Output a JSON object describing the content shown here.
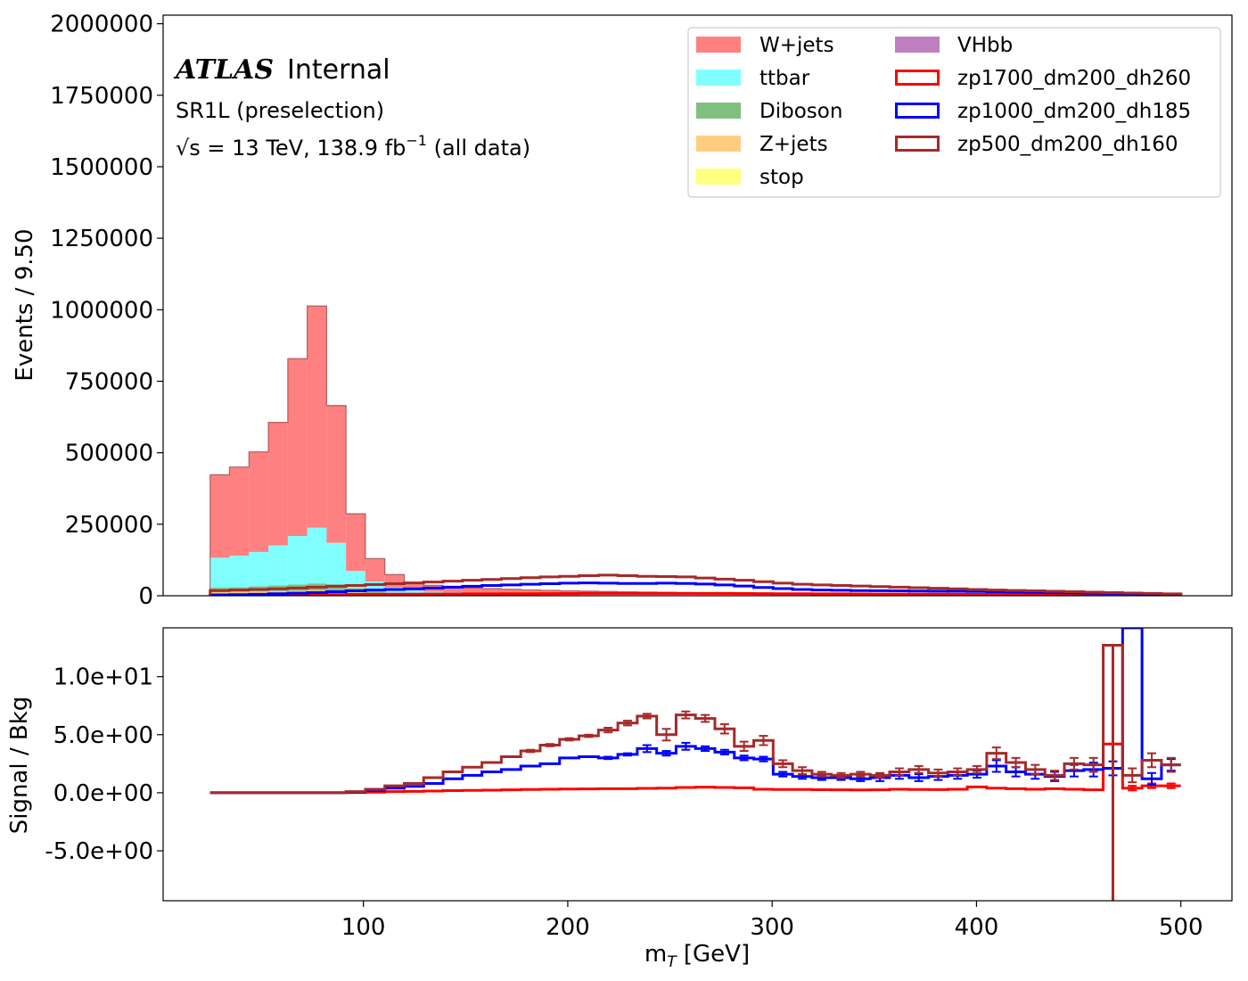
{
  "chart_data": [
    {
      "type": "bar",
      "subtype": "stacked-histogram",
      "xlabel": "m_T [GeV]",
      "ylabel": "Events / 9.50",
      "xlim": [
        2,
        525
      ],
      "ylim": [
        0,
        2030000
      ],
      "yticks": [
        0,
        250000,
        500000,
        750000,
        1000000,
        1250000,
        1500000,
        1750000,
        2000000
      ],
      "ytick_labels": [
        "0",
        "250000",
        "500000",
        "750000",
        "1000000",
        "1250000",
        "1500000",
        "1750000",
        "2000000"
      ],
      "bin_edges": [
        25.0,
        34.5,
        44.0,
        53.5,
        63.0,
        72.5,
        82.0,
        91.5,
        101.0,
        110.5,
        120.0,
        129.5,
        139.0,
        148.5,
        158.0,
        167.5,
        177.0,
        186.5,
        196.0,
        205.5,
        215.0,
        224.5,
        234.0,
        243.5,
        253.0,
        262.5,
        272.0,
        281.5,
        291.0,
        300.5,
        310.0,
        319.5,
        329.0,
        338.5,
        348.0,
        357.5,
        367.0,
        376.5,
        386.0,
        395.5,
        405.0,
        414.5,
        424.0,
        433.5,
        443.0,
        452.5,
        462.0,
        471.5,
        481.0,
        490.5,
        500.0
      ],
      "stack": [
        {
          "name": "VHbb",
          "color": "#bf7fbf",
          "values": [
            0,
            0,
            0,
            0,
            0,
            0,
            0,
            0,
            0,
            0,
            0,
            0,
            0,
            0,
            0,
            0,
            0,
            0,
            0,
            0,
            0,
            0,
            0,
            0,
            0,
            0,
            0,
            0,
            0,
            0,
            0,
            0,
            0,
            0,
            0,
            0,
            0,
            0,
            0,
            0,
            0,
            0,
            0,
            0,
            0,
            0,
            0,
            0,
            0,
            0
          ]
        },
        {
          "name": "stop",
          "color": "#ffff80",
          "values": [
            3000,
            3000,
            3000,
            3000,
            3000,
            3000,
            3000,
            2500,
            2000,
            1500,
            1000,
            800,
            600,
            500,
            400,
            400,
            300,
            300,
            300,
            300,
            200,
            200,
            200,
            200,
            200,
            200,
            200,
            100,
            100,
            100,
            100,
            100,
            100,
            100,
            100,
            100,
            100,
            100,
            100,
            100,
            100,
            100,
            100,
            100,
            100,
            100,
            100,
            100,
            100,
            100
          ]
        },
        {
          "name": "Z+jets",
          "color": "#ffcc80",
          "values": [
            10000,
            11000,
            12000,
            13000,
            14000,
            15000,
            14000,
            9000,
            5000,
            3000,
            2000,
            1500,
            1200,
            1000,
            900,
            800,
            700,
            600,
            600,
            500,
            500,
            400,
            400,
            400,
            300,
            300,
            300,
            300,
            200,
            200,
            200,
            200,
            200,
            200,
            200,
            200,
            200,
            200,
            100,
            100,
            100,
            100,
            100,
            100,
            100,
            100,
            100,
            100,
            100,
            100
          ]
        },
        {
          "name": "Diboson",
          "color": "#80bf80",
          "values": [
            15000,
            16000,
            18000,
            20000,
            22000,
            25000,
            23000,
            15000,
            8000,
            4500,
            3500,
            3000,
            2800,
            2600,
            2400,
            2200,
            2000,
            1900,
            1800,
            1700,
            1600,
            1500,
            1400,
            1300,
            1200,
            1100,
            1000,
            950,
            900,
            850,
            800,
            750,
            700,
            650,
            600,
            550,
            500,
            480,
            460,
            440,
            420,
            400,
            380,
            360,
            340,
            320,
            300,
            280,
            260,
            240
          ]
        },
        {
          "name": "ttbar",
          "color": "#80ffff",
          "values": [
            105000,
            110000,
            120000,
            140000,
            170000,
            195000,
            145000,
            60000,
            35000,
            20000,
            12000,
            9000,
            7500,
            6500,
            5800,
            5200,
            4700,
            4300,
            3900,
            3600,
            3300,
            3000,
            2800,
            2600,
            2400,
            2200,
            2000,
            1900,
            1800,
            1700,
            1600,
            1500,
            1400,
            1300,
            1200,
            1150,
            1100,
            1050,
            1000,
            950,
            900,
            850,
            800,
            750,
            700,
            650,
            600,
            550,
            500,
            450
          ]
        },
        {
          "name": "W+jets",
          "color": "#ff8080",
          "values": [
            290000,
            310000,
            350000,
            430000,
            620000,
            775000,
            480000,
            200000,
            80000,
            45000,
            28000,
            22000,
            19000,
            17000,
            15500,
            14000,
            12500,
            11500,
            10500,
            9800,
            9100,
            8500,
            8000,
            7500,
            7000,
            6600,
            6200,
            5800,
            5500,
            5200,
            4900,
            4700,
            4500,
            4300,
            4100,
            3900,
            3700,
            3500,
            3300,
            3100,
            2900,
            2700,
            2500,
            2300,
            2100,
            1900,
            1700,
            1500,
            1300,
            1100
          ]
        }
      ],
      "signals": [
        {
          "name": "zp1700_dm200_dh260",
          "color": "#ff0000",
          "values": [
            1000,
            1500,
            2000,
            2500,
            3000,
            3500,
            4000,
            4500,
            5000,
            5300,
            5600,
            6000,
            6200,
            6500,
            6800,
            7000,
            7200,
            7500,
            7700,
            8000,
            8000,
            8000,
            8000,
            8000,
            8000,
            8000,
            8000,
            7800,
            7500,
            7200,
            7000,
            6800,
            6500,
            6300,
            6000,
            5800,
            5500,
            5300,
            5000,
            4800,
            4500,
            4300,
            4000,
            3800,
            3500,
            3300,
            3000,
            2800,
            2600,
            2400
          ]
        },
        {
          "name": "zp1000_dm200_dh185",
          "color": "#0000ff",
          "values": [
            3000,
            4000,
            5000,
            7000,
            9000,
            11000,
            14000,
            17000,
            20000,
            22000,
            24000,
            27000,
            30000,
            33000,
            36000,
            38000,
            40000,
            42000,
            44000,
            45000,
            44000,
            43000,
            43000,
            44000,
            43000,
            41000,
            38000,
            34000,
            29000,
            25000,
            22000,
            20000,
            19000,
            18000,
            17500,
            17000,
            16500,
            16000,
            15500,
            15000,
            14000,
            13000,
            12000,
            11000,
            10000,
            9000,
            8000,
            7000,
            6000,
            5000
          ]
        },
        {
          "name": "zp500_dm200_dh160",
          "color": "#a52a2a",
          "values": [
            18000,
            20000,
            22000,
            24000,
            27000,
            30000,
            33000,
            36000,
            39000,
            42000,
            45000,
            48000,
            51000,
            54000,
            57000,
            60000,
            63000,
            66000,
            68000,
            70000,
            72000,
            70000,
            68000,
            67000,
            66000,
            62000,
            58000,
            54000,
            49000,
            44000,
            40000,
            38000,
            36000,
            34000,
            32000,
            30000,
            28000,
            26000,
            24000,
            22000,
            20000,
            18500,
            17000,
            15500,
            14000,
            12500,
            11000,
            9500,
            8000,
            6500
          ]
        }
      ],
      "legend": {
        "placement": "top-right",
        "entries": [
          "W+jets",
          "ttbar",
          "Diboson",
          "Z+jets",
          "stop",
          "VHbb",
          "zp1700_dm200_dh260",
          "zp1000_dm200_dh185",
          "zp500_dm200_dh160"
        ]
      }
    },
    {
      "type": "line",
      "subtype": "step-ratio",
      "xlabel": "m_T [GeV]",
      "ylabel": "Signal / Bkg",
      "xlim": [
        2,
        525
      ],
      "ylim": [
        -9.3,
        14.2
      ],
      "xticks": [
        100,
        200,
        300,
        400,
        500
      ],
      "xtick_labels": [
        "100",
        "200",
        "300",
        "400",
        "500"
      ],
      "yticks": [
        -5,
        0,
        5,
        10
      ],
      "ytick_labels": [
        "-5.0e+00",
        "0.0e+00",
        "5.0e+00",
        "1.0e+01"
      ],
      "bin_edges": [
        25.0,
        34.5,
        44.0,
        53.5,
        63.0,
        72.5,
        82.0,
        91.5,
        101.0,
        110.5,
        120.0,
        129.5,
        139.0,
        148.5,
        158.0,
        167.5,
        177.0,
        186.5,
        196.0,
        205.5,
        215.0,
        224.5,
        234.0,
        243.5,
        253.0,
        262.5,
        272.0,
        281.5,
        291.0,
        300.5,
        310.0,
        319.5,
        329.0,
        338.5,
        348.0,
        357.5,
        367.0,
        376.5,
        386.0,
        395.5,
        405.0,
        414.5,
        424.0,
        433.5,
        443.0,
        452.5,
        462.0,
        471.5,
        481.0,
        490.5,
        500.0
      ],
      "series": [
        {
          "name": "zp1700_dm200_dh260",
          "color": "#ff0000",
          "values": [
            0.0,
            0.0,
            0.0,
            0.0,
            0.0,
            0.0,
            0.0,
            0.02,
            0.05,
            0.1,
            0.12,
            0.15,
            0.18,
            0.2,
            0.22,
            0.25,
            0.28,
            0.3,
            0.32,
            0.33,
            0.35,
            0.35,
            0.38,
            0.4,
            0.45,
            0.48,
            0.45,
            0.42,
            0.3,
            0.28,
            0.28,
            0.26,
            0.25,
            0.24,
            0.25,
            0.3,
            0.28,
            0.27,
            0.3,
            0.5,
            0.4,
            0.35,
            0.3,
            0.35,
            0.3,
            0.25,
            4.2,
            0.4,
            0.6,
            0.6
          ],
          "errors": [
            0,
            0,
            0,
            0,
            0,
            0,
            0,
            0,
            0,
            0,
            0,
            0,
            0,
            0,
            0,
            0,
            0,
            0,
            0,
            0,
            0,
            0,
            0,
            0,
            0,
            0,
            0,
            0,
            0,
            0,
            0,
            0,
            0,
            0,
            0,
            0,
            0,
            0,
            0,
            0,
            0,
            0,
            0,
            0,
            0,
            0,
            0,
            0.2,
            0.2,
            0.2
          ]
        },
        {
          "name": "zp1000_dm200_dh185",
          "color": "#0000ff",
          "values": [
            0.0,
            0.0,
            0.0,
            0.0,
            0.0,
            0.0,
            0.0,
            0.05,
            0.2,
            0.4,
            0.55,
            0.8,
            1.2,
            1.5,
            1.8,
            2.0,
            2.3,
            2.5,
            3.0,
            3.1,
            3.0,
            3.3,
            3.8,
            3.4,
            4.0,
            3.8,
            3.5,
            3.0,
            2.9,
            1.6,
            1.4,
            1.3,
            1.3,
            1.2,
            1.3,
            1.5,
            1.3,
            1.4,
            1.5,
            1.6,
            2.3,
            1.8,
            1.6,
            1.4,
            1.9,
            2.0,
            2.1,
            14.2,
            1.2,
            2.4
          ],
          "errors": [
            0,
            0,
            0,
            0,
            0,
            0,
            0,
            0,
            0,
            0,
            0,
            0,
            0,
            0,
            0,
            0,
            0,
            0,
            0,
            0,
            0.1,
            0.1,
            0.3,
            0.2,
            0.3,
            0.2,
            0.2,
            0.2,
            0.2,
            0.2,
            0.2,
            0.2,
            0.2,
            0.2,
            0.3,
            0.3,
            0.3,
            0.3,
            0.3,
            0.3,
            0.5,
            0.4,
            0.4,
            0.4,
            0.5,
            0.6,
            0.6,
            0,
            0.5,
            0.5
          ]
        },
        {
          "name": "zp500_dm200_dh160",
          "color": "#a52a2a",
          "values": [
            0.0,
            0.0,
            0.0,
            0.0,
            0.0,
            0.0,
            0.0,
            0.1,
            0.3,
            0.6,
            0.8,
            1.3,
            1.8,
            2.2,
            2.6,
            3.1,
            3.6,
            4.1,
            4.6,
            4.9,
            5.4,
            6.0,
            6.6,
            5.0,
            6.7,
            6.4,
            5.5,
            4.0,
            4.5,
            2.5,
            1.9,
            1.6,
            1.5,
            1.6,
            1.5,
            1.8,
            2.0,
            1.7,
            1.8,
            2.0,
            3.4,
            2.6,
            2.0,
            1.5,
            2.5,
            2.4,
            12.7,
            1.5,
            2.8,
            2.4
          ],
          "errors": [
            0,
            0,
            0,
            0,
            0,
            0,
            0,
            0,
            0,
            0,
            0,
            0,
            0,
            0,
            0,
            0,
            0.1,
            0.1,
            0.1,
            0.1,
            0.2,
            0.2,
            0.2,
            0.5,
            0.3,
            0.3,
            0.4,
            0.4,
            0.4,
            0.3,
            0.3,
            0.2,
            0.2,
            0.2,
            0.2,
            0.3,
            0.3,
            0.3,
            0.3,
            0.3,
            0.5,
            0.4,
            0.4,
            0.4,
            0.5,
            0.6,
            0,
            0.6,
            0.6,
            0.6
          ]
        }
      ],
      "special_low_line": {
        "series": "zp500_dm200_dh160",
        "bin_index": 46,
        "value": -9.3
      }
    }
  ],
  "annotations": {
    "atlas_label": "ATLAS",
    "internal_label": "Internal",
    "region_label": "SR1L (preselection)",
    "energy_sqrt": "√s",
    "energy_rest": " = 13 TeV, 138.9 fb",
    "energy_sup": "−1",
    "energy_tail": " (all data)"
  }
}
